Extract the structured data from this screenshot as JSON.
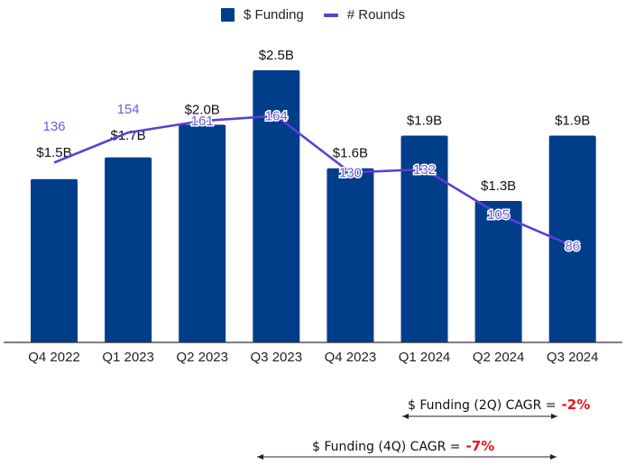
{
  "chart_data": {
    "type": "bar",
    "title": "",
    "xlabel": "",
    "ylabel": "",
    "categories": [
      "Q4 2022",
      "Q1 2023",
      "Q2 2023",
      "Q3 2023",
      "Q4 2023",
      "Q1 2024",
      "Q2 2024",
      "Q3 2024"
    ],
    "series": [
      {
        "name": "$ Funding",
        "type": "bar",
        "axis": "left",
        "color": "#003e8a",
        "values": [
          1.5,
          1.7,
          2.0,
          2.5,
          1.6,
          1.9,
          1.3,
          1.9
        ],
        "labels": [
          "$1.5B",
          "$1.7B",
          "$2.0B",
          "$2.5B",
          "$1.6B",
          "$1.9B",
          "$1.3B",
          "$1.9B"
        ]
      },
      {
        "name": "# Rounds",
        "type": "line",
        "axis": "right",
        "color": "#5b3fd6",
        "values": [
          136,
          154,
          161,
          164,
          130,
          132,
          105,
          86
        ],
        "labels": [
          "136",
          "154",
          "161",
          "164",
          "130",
          "132",
          "105",
          "86"
        ]
      }
    ],
    "y_left_range": [
      0,
      2.8
    ],
    "y_right_range": [
      0,
      240
    ],
    "grid": false,
    "legend": "top-center",
    "annotations": [
      {
        "text": "$ Funding (2Q) CAGR =",
        "value": "-2%",
        "span": [
          "Q1 2024",
          "Q3 2024"
        ]
      },
      {
        "text": "$ Funding (4Q) CAGR =",
        "value": "-7%",
        "span": [
          "Q3 2023",
          "Q3 2024"
        ]
      }
    ]
  },
  "legend": {
    "funding_label": "$ Funding",
    "rounds_label": "# Rounds"
  },
  "cagr": {
    "two_q_text": "$ Funding (2Q) CAGR =",
    "two_q_value": "-2%",
    "four_q_text": "$ Funding (4Q) CAGR =",
    "four_q_value": "-7%"
  }
}
